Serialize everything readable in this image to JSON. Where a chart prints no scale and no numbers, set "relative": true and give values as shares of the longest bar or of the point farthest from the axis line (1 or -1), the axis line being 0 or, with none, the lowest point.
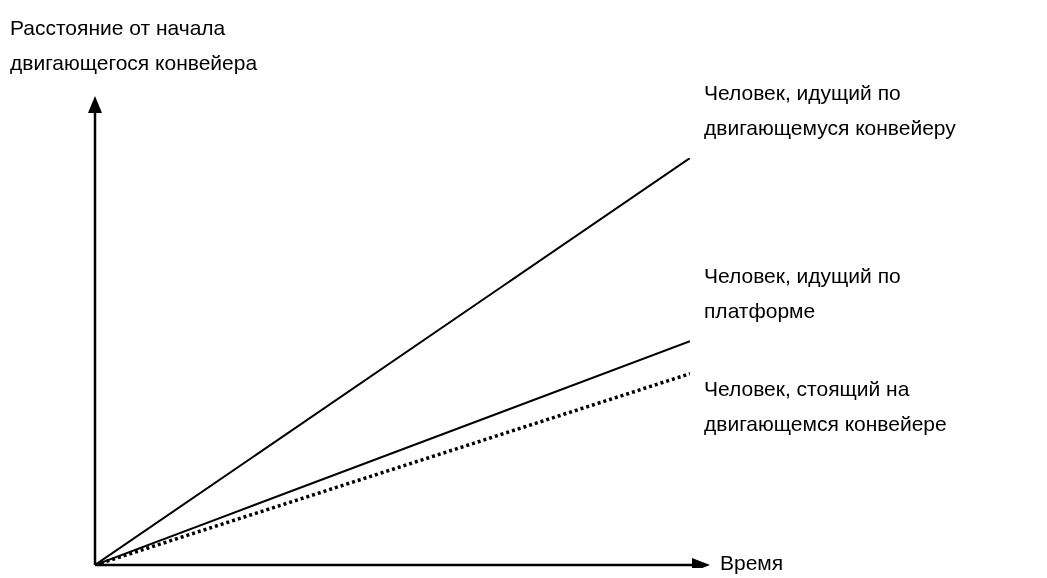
{
  "chart_data": {
    "type": "line",
    "relative": true,
    "ylabel": "Расстояние от начала двигающегося конвейера",
    "xlabel": "Время",
    "categories": [
      null,
      null
    ],
    "marker": "none",
    "series": [
      {
        "name": "Человек, идущий по двигающемуся конвейеру",
        "color": "#000000",
        "values": [
          0,
          1
        ],
        "line_style": "solid"
      },
      {
        "name": "Человек, идущий по платформе",
        "color": "#000000",
        "values": [
          0,
          0.55
        ],
        "line_style": "solid"
      },
      {
        "name": "Человек, стоящий на двигающемся конвейере",
        "color": "#000000",
        "values": [
          0,
          0.47
        ],
        "line_style": "dotted"
      }
    ]
  }
}
